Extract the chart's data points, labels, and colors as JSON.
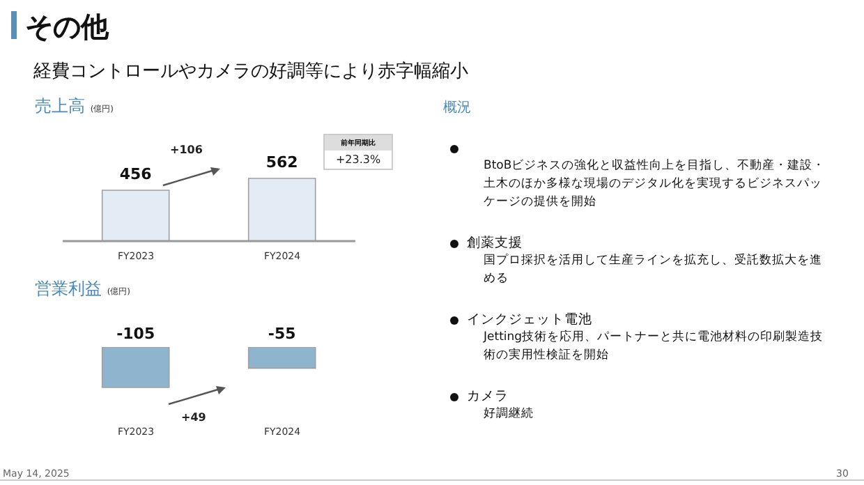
{
  "chart_data": [
    {
      "type": "other",
      "title": "その他",
      "subtitle": "経費コントロールやカメラの好調等により赤字幅縮小",
      "annotations": [
        "May 14, 2025",
        "30"
      ]
    },
    {
      "type": "bar",
      "title": "売上高",
      "ylabel": "(億円)",
      "categories": [
        "FY2023",
        "FY2024"
      ],
      "series": [
        {
          "color": "#e3ebf4",
          "values": [
            456,
            562
          ]
        }
      ],
      "data_labels": true,
      "legend": false,
      "annotations": [
        "+106",
        "前年同期比",
        "+23.3%"
      ]
    },
    {
      "type": "bar",
      "title": "営業利益",
      "ylabel": "(億円)",
      "categories": [
        "FY2023",
        "FY2024"
      ],
      "series": [
        {
          "color": "#8fb4cd",
          "values": [
            -105,
            -55
          ]
        }
      ],
      "data_labels": true,
      "legend": false,
      "annotations": [
        "+49"
      ]
    },
    {
      "type": "other",
      "title": "概況",
      "categories": [
        null,
        "創薬支援",
        "インクジェット電池",
        "カメラ"
      ],
      "annotations": [
        "BtoBビジネスの強化と収益性向上を目指し、不動産・建設・土木のほか多様な現場のデジタル化を実現するビジネスパッケージの提供を開始",
        "国プロ採択を活用して生産ラインを拡充し、受託数拡大を進める",
        "Jetting技術を応用、パートナーと共に電池材料の印刷製造技術の実用性検証を開始",
        "好調継続"
      ]
    }
  ]
}
